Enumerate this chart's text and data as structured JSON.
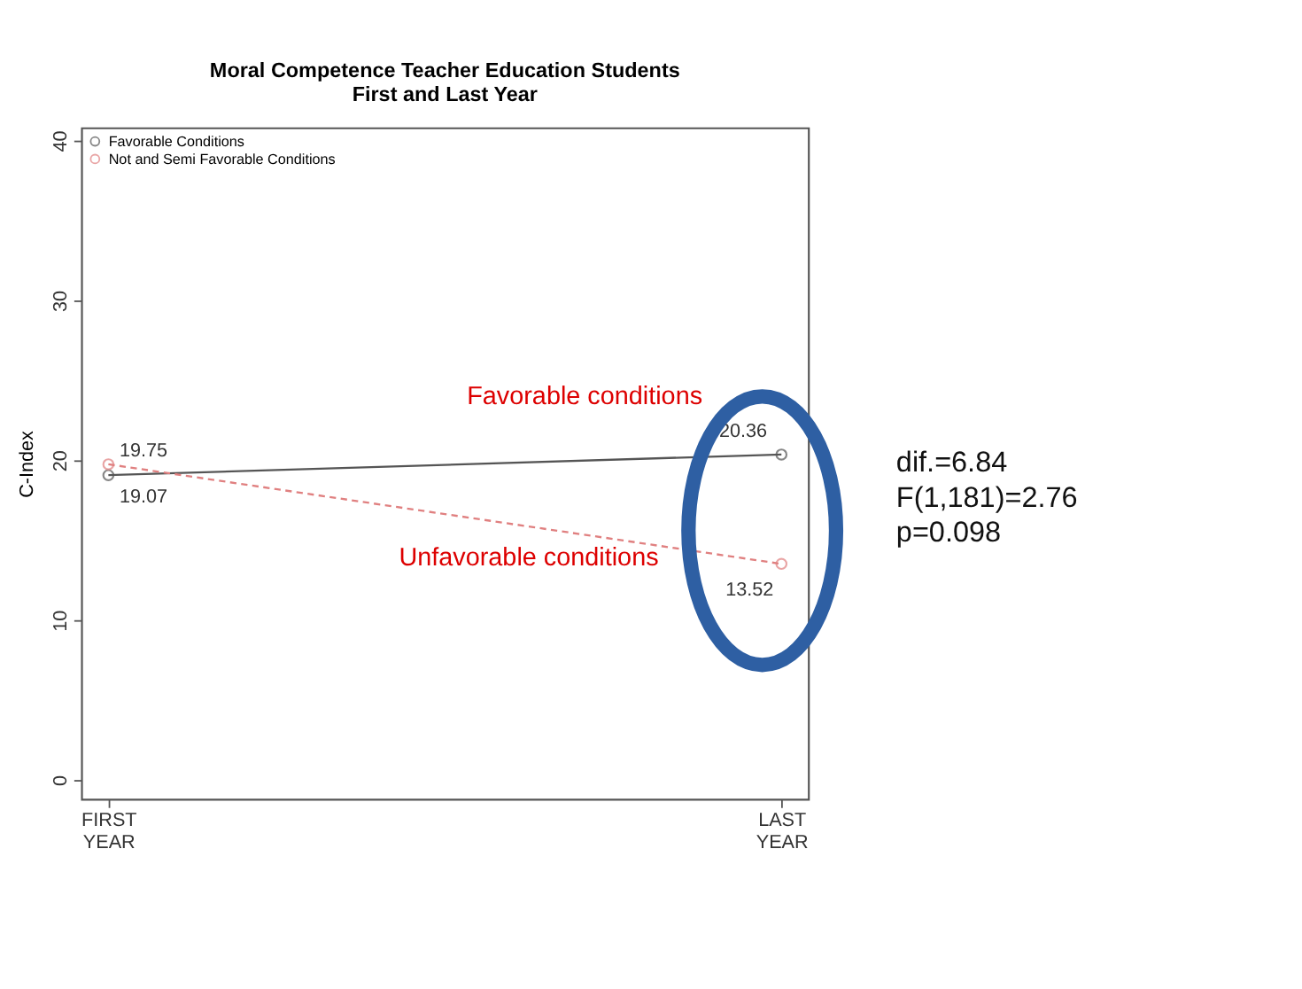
{
  "chart_data": {
    "type": "line",
    "title": "Moral Competence Teacher Education Students\nFirst and Last Year",
    "ylabel": "C-Index",
    "categories": [
      "FIRST YEAR",
      "LAST YEAR"
    ],
    "series": [
      {
        "name": "Favorable Conditions",
        "color": "#555555",
        "values": [
          19.07,
          20.36
        ],
        "line_style": "solid"
      },
      {
        "name": "Not and Semi Favorable Conditions",
        "color": "#e08080",
        "values": [
          19.75,
          13.52
        ],
        "line_style": "dashed"
      }
    ],
    "ylim": [
      -1.2,
      40.8
    ],
    "yticks": [
      0,
      10,
      20,
      30,
      40
    ],
    "grid": false,
    "legend": "top left",
    "marker": "circle",
    "data_labels": true,
    "annotations": [
      "Favorable conditions",
      "Unfavorable conditions",
      "dif.=6.84\nF(1,181)=2.76\np=0.098"
    ]
  }
}
